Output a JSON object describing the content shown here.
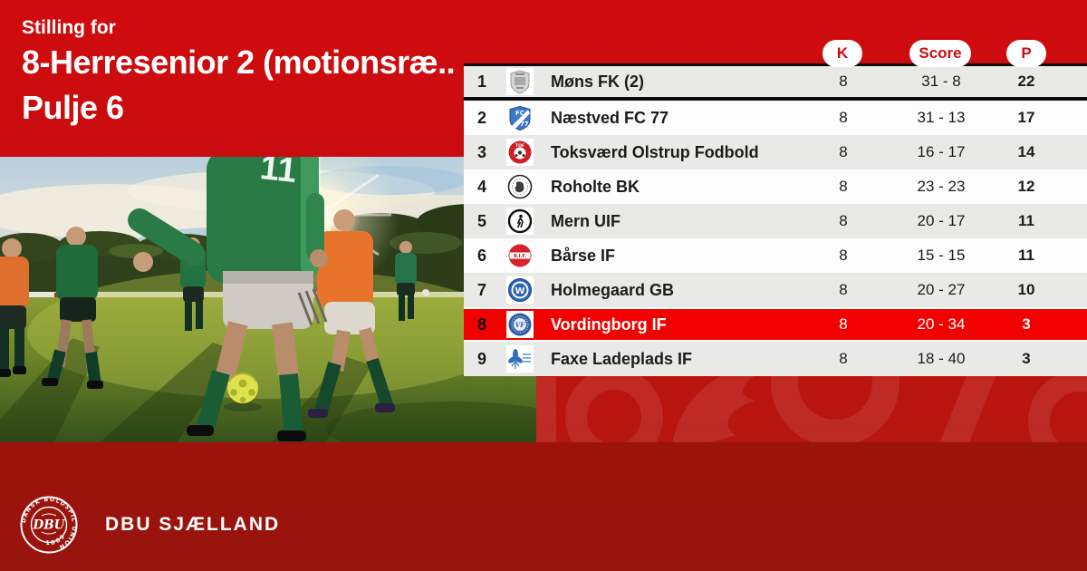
{
  "header": {
    "eyebrow": "Stilling for",
    "title": "8-Herresenior 2 (motionsræ..",
    "subtitle": "Pulje 6"
  },
  "table": {
    "columns": {
      "k": "K",
      "score": "Score",
      "p": "P"
    },
    "rows": [
      {
        "pos": "1",
        "club": "Møns FK (2)",
        "k": "8",
        "score": "31 - 8",
        "p": "22",
        "highlight": false,
        "logo": {
          "icon": "moens-fk-crest-icon",
          "kind": "gray-shield"
        }
      },
      {
        "pos": "2",
        "club": "Næstved FC 77",
        "k": "8",
        "score": "31 - 13",
        "p": "17",
        "highlight": false,
        "logo": {
          "icon": "naestved-fc77-crest-icon",
          "kind": "blue-shield"
        }
      },
      {
        "pos": "3",
        "club": "Toksværd Olstrup Fodbold",
        "k": "8",
        "score": "16 - 17",
        "p": "14",
        "highlight": false,
        "logo": {
          "icon": "toksvaerd-crest-icon",
          "kind": "red-ball"
        }
      },
      {
        "pos": "4",
        "club": "Roholte BK",
        "k": "8",
        "score": "23 - 23",
        "p": "12",
        "highlight": false,
        "logo": {
          "icon": "roholte-crest-icon",
          "kind": "ring-blob"
        }
      },
      {
        "pos": "5",
        "club": "Mern UIF",
        "k": "8",
        "score": "20 - 17",
        "p": "11",
        "highlight": false,
        "logo": {
          "icon": "mern-uif-crest-icon",
          "kind": "ring-silhouette"
        }
      },
      {
        "pos": "6",
        "club": "Bårse IF",
        "k": "8",
        "score": "15 - 15",
        "p": "11",
        "highlight": false,
        "logo": {
          "icon": "baarse-if-crest-icon",
          "kind": "red-band"
        }
      },
      {
        "pos": "7",
        "club": "Holmegaard GB",
        "k": "8",
        "score": "20 - 27",
        "p": "10",
        "highlight": false,
        "logo": {
          "icon": "holmegaard-crest-icon",
          "kind": "blue-w"
        }
      },
      {
        "pos": "8",
        "club": "Vordingborg IF",
        "k": "8",
        "score": "20 - 34",
        "p": "3",
        "highlight": true,
        "logo": {
          "icon": "vordingborg-crest-icon",
          "kind": "blue-mono"
        }
      },
      {
        "pos": "9",
        "club": "Faxe Ladeplads IF",
        "k": "8",
        "score": "18 - 40",
        "p": "3",
        "highlight": false,
        "logo": {
          "icon": "faxe-ladeplads-crest-icon",
          "kind": "blue-flower"
        }
      }
    ]
  },
  "footer": {
    "brand": "DBU SJÆLLAND",
    "crest_monogram": "DBU",
    "crest_text_top": "DANSK BOLDSPIL UNION",
    "crest_text_bottom": "· 1889 ·"
  },
  "colors": {
    "background_top_red": "#d00b0e",
    "background_bottom_red": "#9c130b",
    "highlight_row_red": "#f20000",
    "row_gray": "#e9e9e8",
    "row_white": "#fcfcfc",
    "pill_text_red": "#cb0c0f",
    "text_dark": "#1c1c1a",
    "divider_black": "#0c0c0c"
  }
}
